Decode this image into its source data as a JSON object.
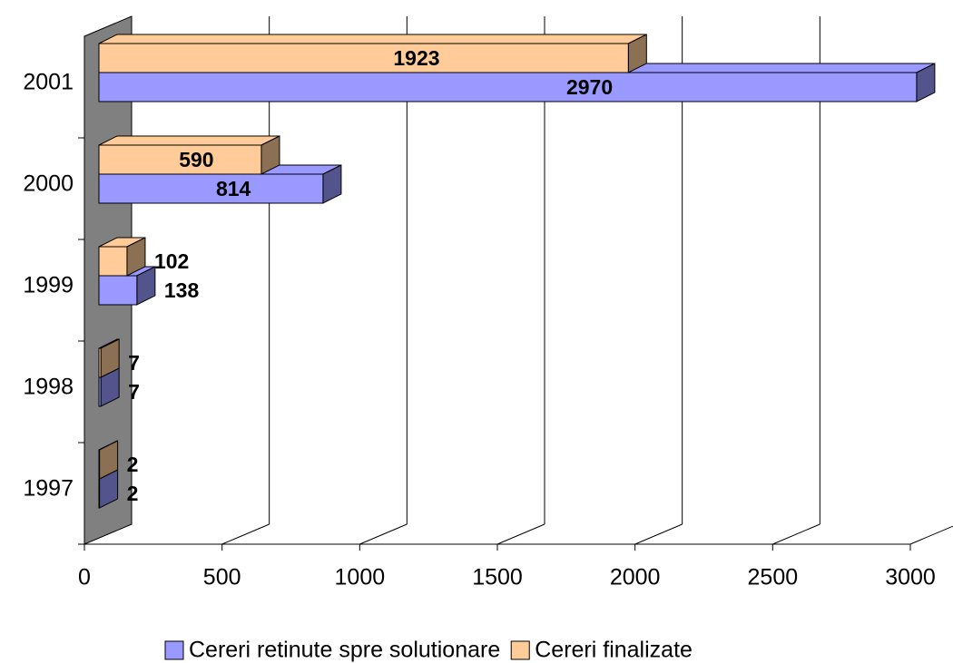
{
  "chart_data": {
    "type": "bar3d_horizontal",
    "categories": [
      "1997",
      "1998",
      "1999",
      "2000",
      "2001"
    ],
    "series": [
      {
        "name": "Cereri retinute spre solutionare",
        "color": "#9999ff",
        "values": [
          2,
          7,
          138,
          814,
          2970
        ]
      },
      {
        "name": "Cereri finalizate",
        "color": "#ffcc99",
        "values": [
          2,
          7,
          102,
          590,
          1923
        ]
      }
    ],
    "xlim": [
      0,
      3000
    ],
    "xticks": [
      0,
      500,
      1000,
      1500,
      2000,
      2500,
      3000
    ],
    "grid": true
  }
}
